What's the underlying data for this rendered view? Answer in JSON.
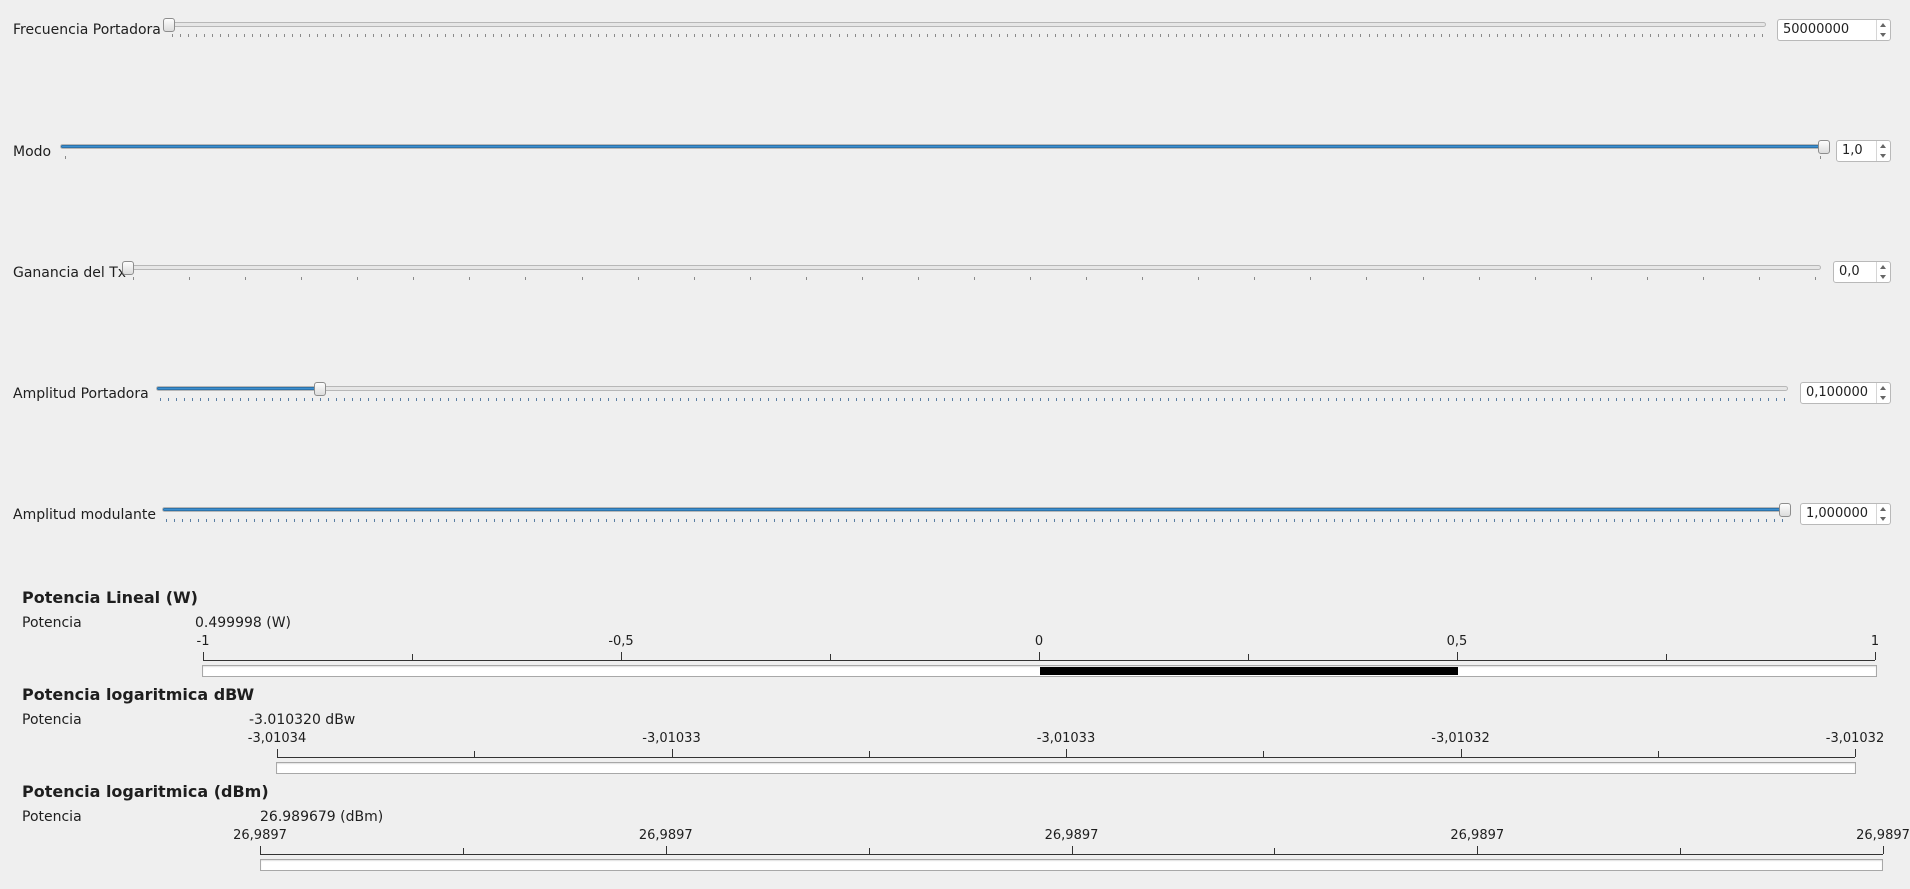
{
  "sliders": [
    {
      "label": "Frecuencia Portadora",
      "value": "50000000",
      "level": 0.0
    },
    {
      "label": "Modo",
      "value": "1,0",
      "level": 1.0
    },
    {
      "label": "Ganancia del Tx",
      "value": "0,0",
      "level": 0.0
    },
    {
      "label": "Amplitud Portadora",
      "value": "0,100000",
      "level": 0.1
    },
    {
      "label": "Amplitud modulante",
      "value": "1,000000",
      "level": 1.0
    }
  ],
  "meters": [
    {
      "title": "Potencia Lineal (W)",
      "label": "Potencia",
      "reading": "0.499998 (W)",
      "scale_labels": [
        "-1",
        "-0,5",
        "0",
        "0,5",
        "1"
      ],
      "range": [
        -1,
        1
      ],
      "value": 0.499998
    },
    {
      "title": "Potencia logaritmica dBW",
      "label": "Potencia",
      "reading": "-3.010320 dBw",
      "scale_labels": [
        "-3,01034",
        "-3,01033",
        "-3,01033",
        "-3,01032",
        "-3,01032"
      ]
    },
    {
      "title": "Potencia logaritmica (dBm)",
      "label": "Potencia",
      "reading": "26.989679 (dBm)",
      "scale_labels": [
        "26,9897",
        "26,9897",
        "26,9897",
        "26,9897",
        "26,9897"
      ]
    }
  ],
  "colors": {
    "accent": "#3c8fd0",
    "background": "#efefef",
    "meter_fill": "#000000"
  }
}
